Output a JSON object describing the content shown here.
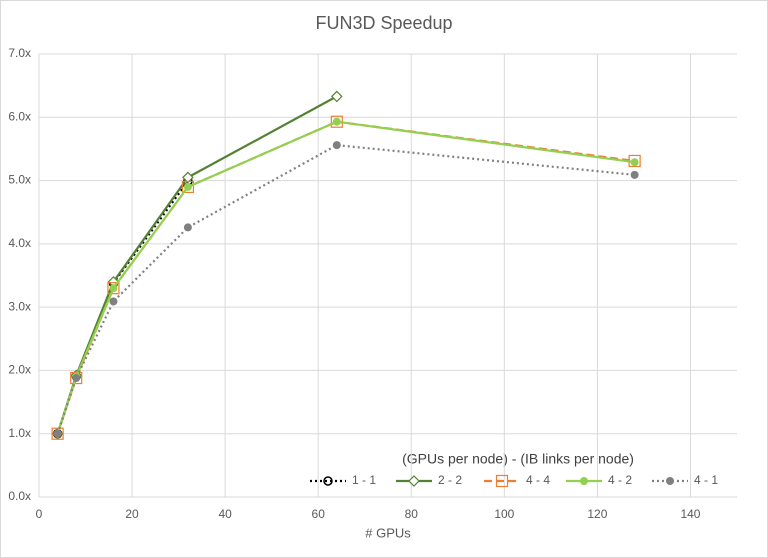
{
  "chart_data": {
    "type": "line",
    "title": "FUN3D Speedup",
    "x_label": "# GPUs",
    "legend_title": "(GPUs per node) - (IB links per node)",
    "legend": "bottom-right",
    "grid": true,
    "xlim": [
      0,
      150
    ],
    "xticks": [
      0,
      20,
      40,
      60,
      80,
      100,
      120,
      140
    ],
    "ylim": [
      0,
      7
    ],
    "yticks": [
      {
        "value": 0,
        "label": "0.0x"
      },
      {
        "value": 1,
        "label": "1.0x"
      },
      {
        "value": 2,
        "label": "2.0x"
      },
      {
        "value": 3,
        "label": "3.0x"
      },
      {
        "value": 4,
        "label": "4.0x"
      },
      {
        "value": 5,
        "label": "5.0x"
      },
      {
        "value": 6,
        "label": "6.0x"
      },
      {
        "value": 7,
        "label": "7.0x"
      }
    ],
    "series": [
      {
        "name": "1 - 1",
        "color": "#000000",
        "dash": "dotted",
        "marker": "circle-open",
        "x": [
          4,
          8,
          16,
          32
        ],
        "values": [
          1.0,
          1.91,
          3.38,
          4.99
        ]
      },
      {
        "name": "2 - 2",
        "color": "#548235",
        "dash": "solid",
        "marker": "diamond-open",
        "x": [
          4,
          8,
          16,
          32,
          64
        ],
        "values": [
          1.0,
          1.92,
          3.4,
          5.05,
          6.33
        ]
      },
      {
        "name": "4 - 4",
        "color": "#ed7d31",
        "dash": "dashed",
        "marker": "square-open",
        "x": [
          4,
          8,
          16,
          32,
          64,
          128
        ],
        "values": [
          1.0,
          1.88,
          3.3,
          4.9,
          5.93,
          5.31
        ]
      },
      {
        "name": "4 - 2",
        "color": "#92d050",
        "dash": "solid",
        "marker": "circle-filled",
        "x": [
          4,
          8,
          16,
          32,
          64,
          128
        ],
        "values": [
          1.0,
          1.9,
          3.3,
          4.9,
          5.93,
          5.29
        ]
      },
      {
        "name": "4 - 1",
        "color": "#808080",
        "dash": "dotted",
        "marker": "circle-filled",
        "x": [
          4,
          8,
          16,
          32,
          64,
          128
        ],
        "values": [
          1.0,
          1.88,
          3.09,
          4.26,
          5.56,
          5.09
        ]
      }
    ]
  }
}
